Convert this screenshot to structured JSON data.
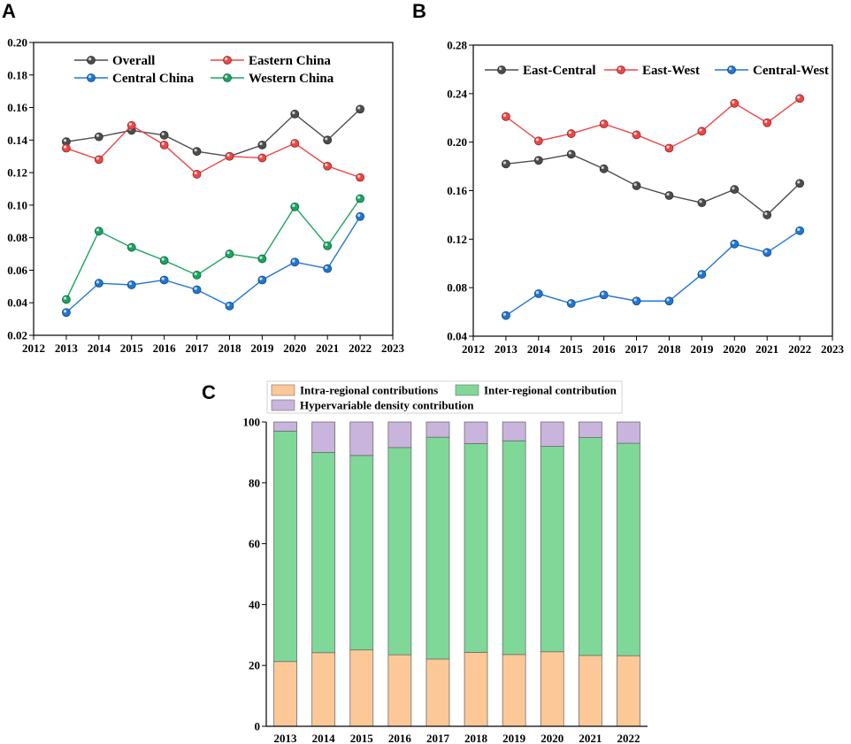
{
  "chart_data": [
    {
      "panel": "A",
      "type": "line",
      "x": [
        2013,
        2014,
        2015,
        2016,
        2017,
        2018,
        2019,
        2020,
        2021,
        2022
      ],
      "xlim": [
        2012,
        2023
      ],
      "xticks": [
        "2012",
        "2013",
        "2014",
        "2015",
        "2016",
        "2017",
        "2018",
        "2019",
        "2020",
        "2021",
        "2022",
        "2023"
      ],
      "ylim": [
        0.02,
        0.2
      ],
      "yticks": [
        "0.02",
        "0.04",
        "0.06",
        "0.08",
        "0.10",
        "0.12",
        "0.14",
        "0.16",
        "0.18",
        "0.20"
      ],
      "series": [
        {
          "name": "Overall",
          "color": "#4d4d4d",
          "values": [
            0.139,
            0.142,
            0.146,
            0.143,
            0.133,
            0.13,
            0.137,
            0.156,
            0.14,
            0.159
          ]
        },
        {
          "name": "Eastern China",
          "color": "#ee4646",
          "values": [
            0.135,
            0.128,
            0.149,
            0.137,
            0.119,
            0.13,
            0.129,
            0.138,
            0.124,
            0.117
          ]
        },
        {
          "name": "Central China",
          "color": "#1f77d4",
          "values": [
            0.034,
            0.052,
            0.051,
            0.054,
            0.048,
            0.038,
            0.054,
            0.065,
            0.061,
            0.093
          ]
        },
        {
          "name": "Western China",
          "color": "#1aa561",
          "values": [
            0.042,
            0.084,
            0.074,
            0.066,
            0.057,
            0.07,
            0.067,
            0.099,
            0.075,
            0.104
          ]
        }
      ]
    },
    {
      "panel": "B",
      "type": "line",
      "x": [
        2013,
        2014,
        2015,
        2016,
        2017,
        2018,
        2019,
        2020,
        2021,
        2022
      ],
      "xlim": [
        2012,
        2023
      ],
      "xticks": [
        "2012",
        "2013",
        "2014",
        "2015",
        "2016",
        "2017",
        "2018",
        "2019",
        "2020",
        "2021",
        "2022",
        "2023"
      ],
      "ylim": [
        0.04,
        0.28
      ],
      "yticks": [
        "0.04",
        "0.08",
        "0.12",
        "0.16",
        "0.20",
        "0.24",
        "0.28"
      ],
      "series": [
        {
          "name": "East-Central",
          "color": "#4d4d4d",
          "values": [
            0.182,
            0.185,
            0.19,
            0.178,
            0.164,
            0.156,
            0.15,
            0.161,
            0.14,
            0.166
          ]
        },
        {
          "name": "East-West",
          "color": "#ee4646",
          "values": [
            0.221,
            0.201,
            0.207,
            0.215,
            0.206,
            0.195,
            0.209,
            0.232,
            0.216,
            0.236
          ]
        },
        {
          "name": "Central-West",
          "color": "#1f77d4",
          "values": [
            0.057,
            0.075,
            0.067,
            0.074,
            0.069,
            0.069,
            0.091,
            0.116,
            0.109,
            0.127
          ]
        }
      ]
    },
    {
      "panel": "C",
      "type": "bar",
      "stacked": true,
      "categories": [
        "2013",
        "2014",
        "2015",
        "2016",
        "2017",
        "2018",
        "2019",
        "2020",
        "2021",
        "2022"
      ],
      "ylim": [
        0,
        100
      ],
      "yticks": [
        "0",
        "20",
        "40",
        "60",
        "80",
        "100"
      ],
      "series": [
        {
          "name": "Intra-regional contributions",
          "color": "#fdc898",
          "values": [
            21.3,
            24.2,
            25.1,
            23.5,
            22.1,
            24.3,
            23.6,
            24.5,
            23.3,
            23.2
          ]
        },
        {
          "name": "Inter-regional contribution",
          "color": "#7fd898",
          "values": [
            75.7,
            65.8,
            63.9,
            68.1,
            72.9,
            68.6,
            70.2,
            67.5,
            71.6,
            69.8
          ]
        },
        {
          "name": "Hypervariable density contribution",
          "color": "#c8b4dc",
          "values": [
            3.0,
            10.0,
            11.0,
            8.4,
            5.0,
            7.1,
            6.2,
            8.0,
            5.1,
            7.0
          ]
        }
      ]
    }
  ]
}
